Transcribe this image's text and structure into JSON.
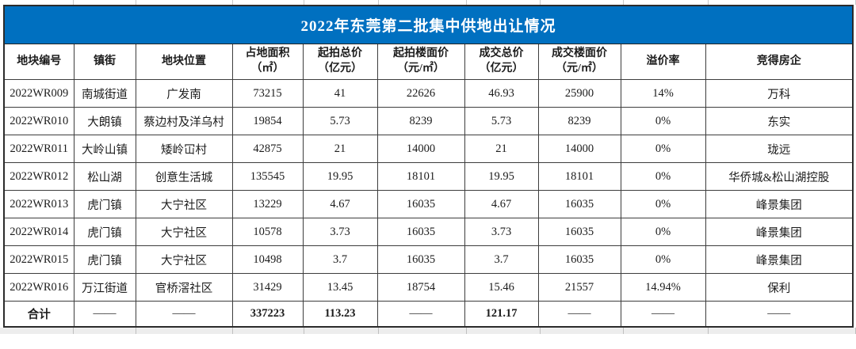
{
  "colors": {
    "title_bg": "#0070C0",
    "title_fg": "#ffffff",
    "grid_line": "#3d3d3d"
  },
  "chart_data": {
    "type": "table",
    "title": "2022年东莞第二批集中供地出让情况",
    "columns": [
      "地块编号",
      "镇街",
      "地块位置",
      "占地面积\n（㎡）",
      "起拍总价\n（亿元）",
      "起拍楼面价\n（元/㎡）",
      "成交总价\n（亿元）",
      "成交楼面价\n（元/㎡）",
      "溢价率",
      "竞得房企"
    ],
    "rows": [
      [
        "2022WR009",
        "南城街道",
        "广发南",
        "73215",
        "41",
        "22626",
        "46.93",
        "25900",
        "14%",
        "万科"
      ],
      [
        "2022WR010",
        "大朗镇",
        "蔡边村及洋乌村",
        "19854",
        "5.73",
        "8239",
        "5.73",
        "8239",
        "0%",
        "东实"
      ],
      [
        "2022WR011",
        "大岭山镇",
        "矮岭冚村",
        "42875",
        "21",
        "14000",
        "21",
        "14000",
        "0%",
        "珑远"
      ],
      [
        "2022WR012",
        "松山湖",
        "创意生活城",
        "135545",
        "19.95",
        "18101",
        "19.95",
        "18101",
        "0%",
        "华侨城&松山湖控股"
      ],
      [
        "2022WR013",
        "虎门镇",
        "大宁社区",
        "13229",
        "4.67",
        "16035",
        "4.67",
        "16035",
        "0%",
        "峰景集团"
      ],
      [
        "2022WR014",
        "虎门镇",
        "大宁社区",
        "10578",
        "3.73",
        "16035",
        "3.73",
        "16035",
        "0%",
        "峰景集团"
      ],
      [
        "2022WR015",
        "虎门镇",
        "大宁社区",
        "10498",
        "3.7",
        "16035",
        "3.7",
        "16035",
        "0%",
        "峰景集团"
      ],
      [
        "2022WR016",
        "万江街道",
        "官桥滘社区",
        "31429",
        "13.45",
        "18754",
        "15.46",
        "21557",
        "14.94%",
        "保利"
      ]
    ],
    "total_row": [
      "合计",
      "——",
      "——",
      "337223",
      "113.23",
      "——",
      "121.17",
      "——",
      "——",
      "——"
    ]
  }
}
